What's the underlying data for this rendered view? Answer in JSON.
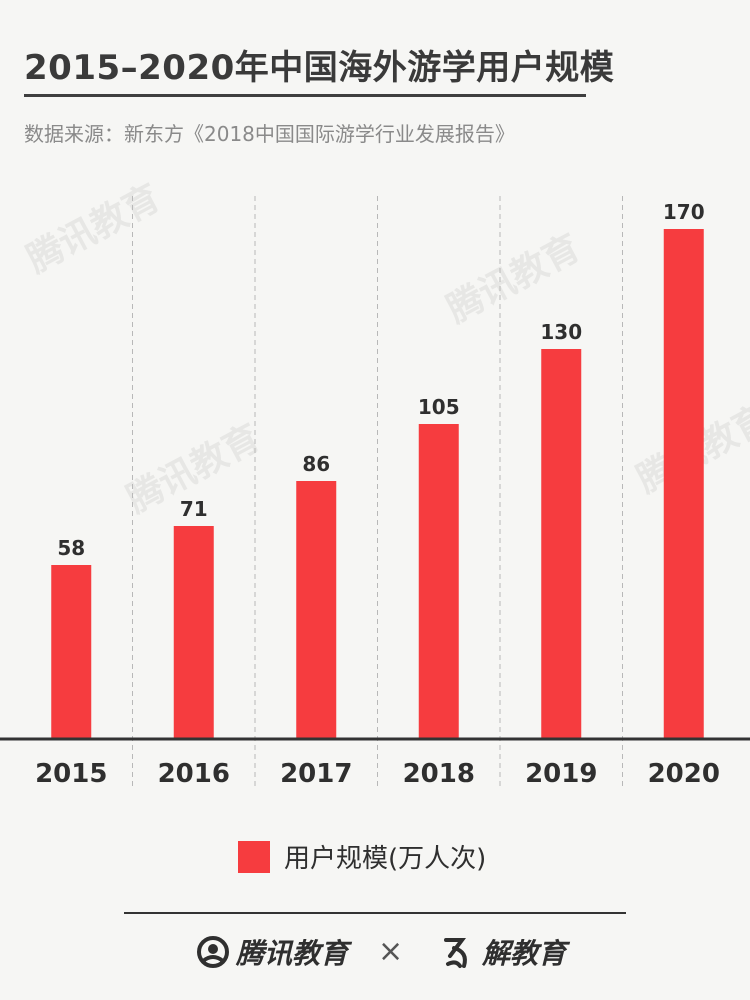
{
  "title": "2015–2020年中国海外游学用户规模",
  "source": "数据来源：新东方《2018中国国际游学行业发展报告》",
  "colors": {
    "bar": "#f63c3f",
    "axis": "#333333",
    "grid": "#b8b8b8",
    "text": "#2f2f2f"
  },
  "legend": {
    "label": "用户规模(万人次)"
  },
  "watermark": "腾讯教育",
  "footer": {
    "brand_left": "腾讯教育",
    "separator": "×",
    "brand_right": "解教育",
    "left_icon": "tencent-edu-logo-icon",
    "right_icon": "jiejiaoyu-logo-icon"
  },
  "chart_data": {
    "type": "bar",
    "categories": [
      "2015",
      "2016",
      "2017",
      "2018",
      "2019",
      "2020"
    ],
    "series": [
      {
        "name": "用户规模(万人次)",
        "values": [
          58,
          71,
          86,
          105,
          130,
          170
        ]
      }
    ],
    "title": "2015–2020年中国海外游学用户规模",
    "xlabel": "",
    "ylabel": "",
    "ylim": [
      0,
      180
    ],
    "grid": "vertical-dashed",
    "legend_position": "bottom"
  }
}
